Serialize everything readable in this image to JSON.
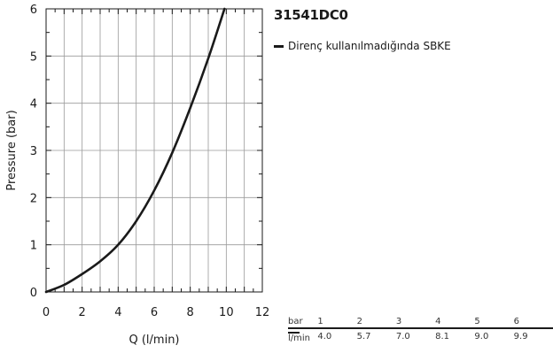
{
  "product": {
    "title": "31541DC0"
  },
  "legend": {
    "label": "Direnç kullanılmadığında SBKE"
  },
  "chart_data": {
    "type": "line",
    "xlabel": "Q (l/min)",
    "ylabel": "Pressure (bar)",
    "xlim": [
      0,
      12
    ],
    "ylim": [
      0,
      6
    ],
    "x_ticks": [
      "0",
      "2",
      "4",
      "6",
      "8",
      "10",
      "12"
    ],
    "y_ticks": [
      "0",
      "1",
      "2",
      "3",
      "4",
      "5",
      "6"
    ],
    "grid": true,
    "legend_position": "right",
    "line_color": "#1a1a1a",
    "series": [
      {
        "name": "Direnç kullanılmadığında SBKE",
        "x": [
          0,
          1,
          2,
          3,
          4,
          5,
          6,
          7,
          8,
          9,
          9.9
        ],
        "y": [
          0,
          0.15,
          0.38,
          0.65,
          1.0,
          1.5,
          2.15,
          2.95,
          3.9,
          4.95,
          6.0
        ]
      }
    ]
  },
  "flow_table": {
    "header_label": "bar",
    "unit_label": "l/min",
    "pressures": [
      "1",
      "2",
      "3",
      "4",
      "5",
      "6"
    ],
    "flows": [
      "4.0",
      "5.7",
      "7.0",
      "8.1",
      "9.0",
      "9.9"
    ]
  }
}
